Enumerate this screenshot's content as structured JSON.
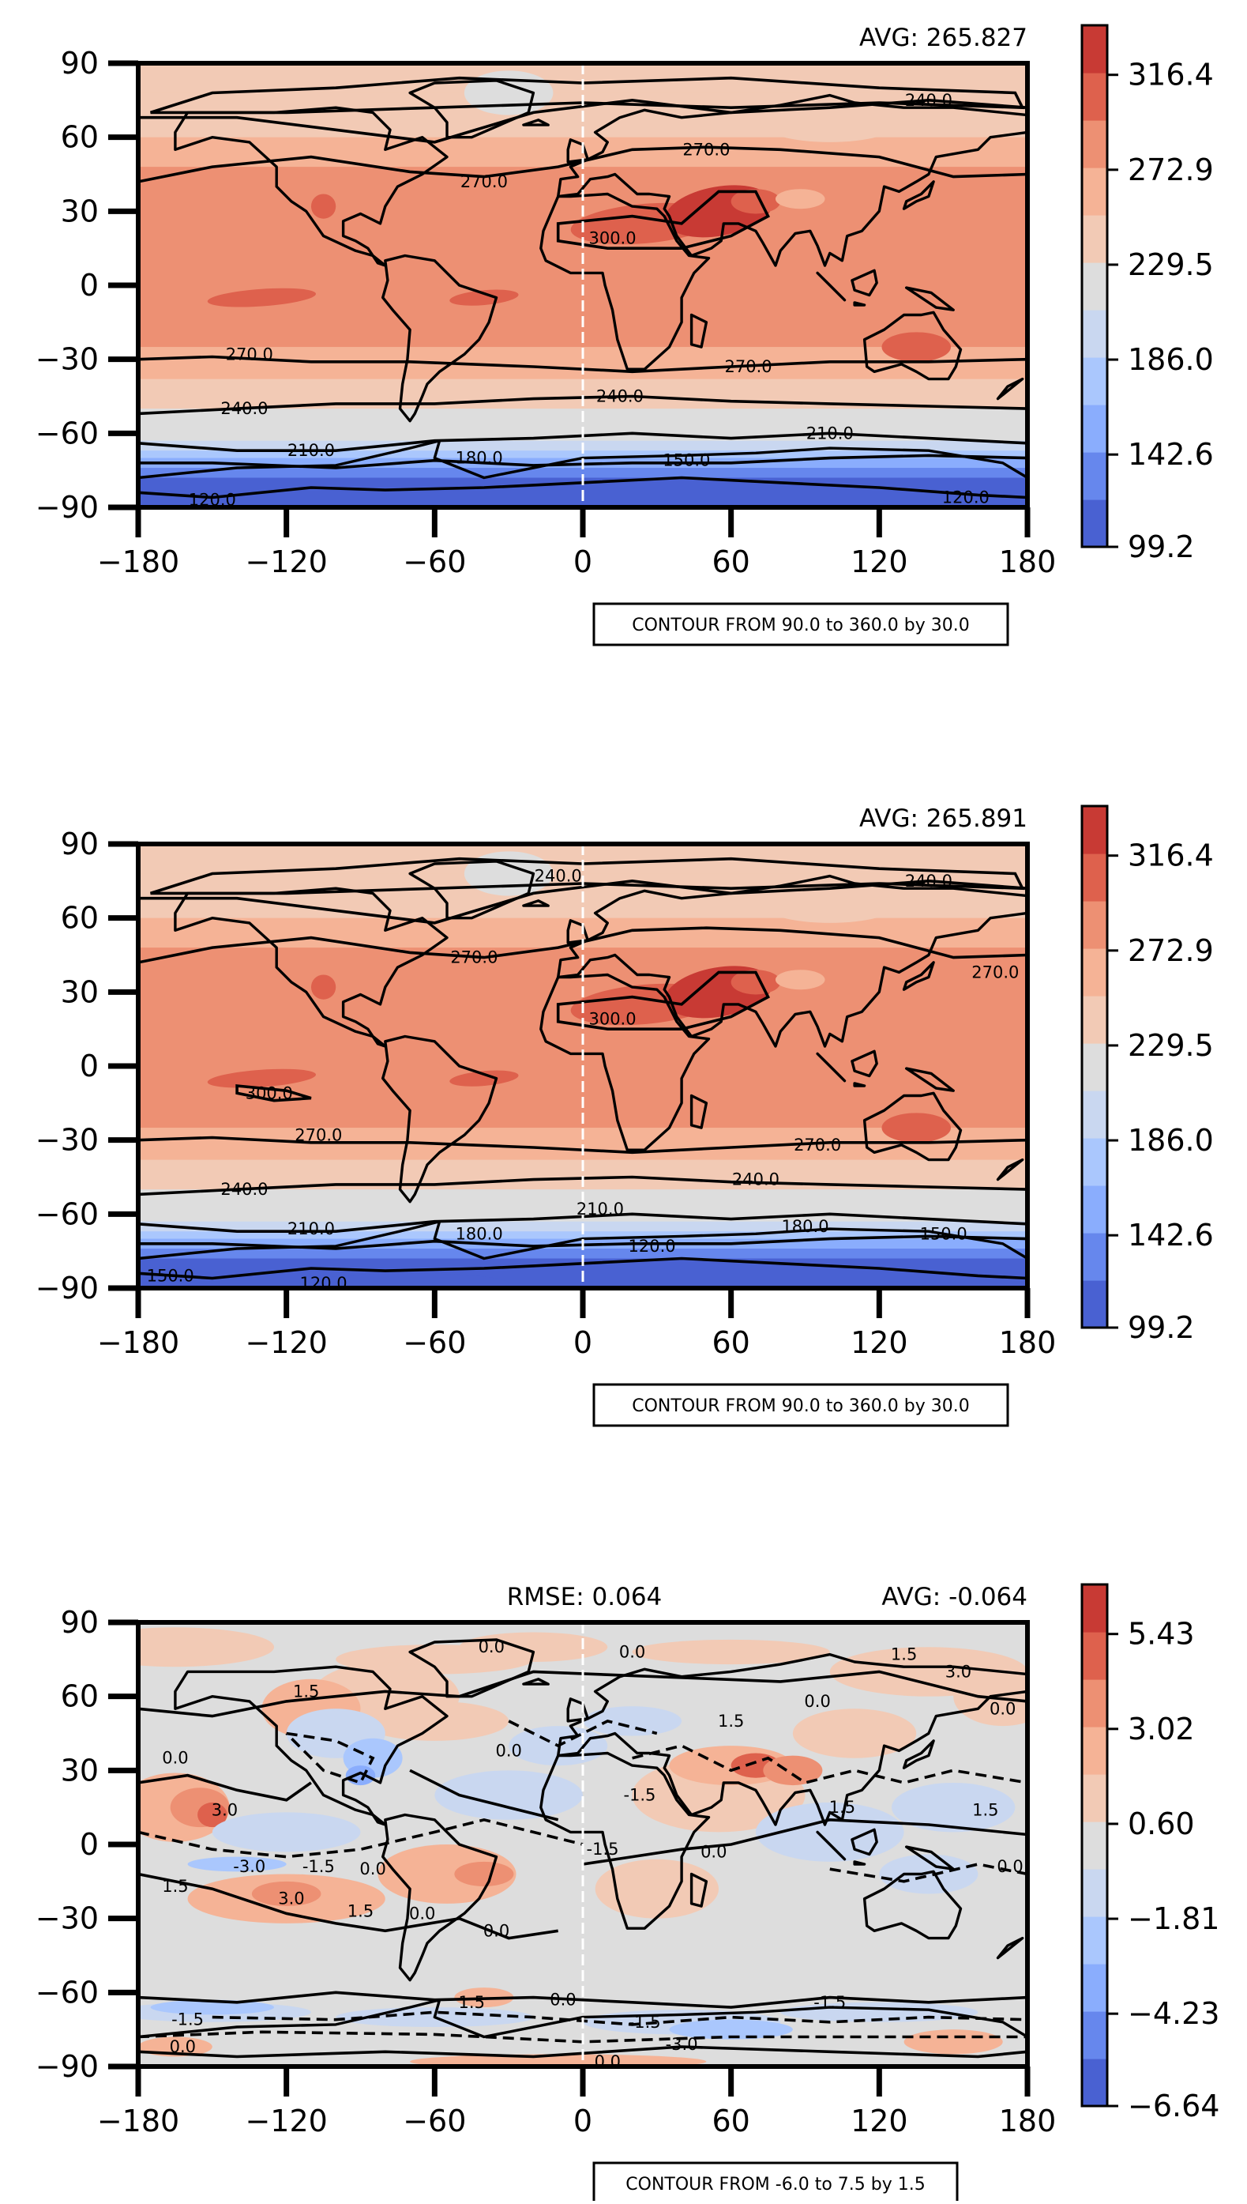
{
  "chart_data": [
    {
      "type": "heatmap",
      "subtype": "global-contour-map",
      "avg_label": "AVG: 265.827",
      "xlim": [
        -180,
        180
      ],
      "ylim": [
        -90,
        90
      ],
      "xticks": [
        "−180",
        "−120",
        "−60",
        "0",
        "60",
        "120",
        "180"
      ],
      "yticks": [
        "90",
        "60",
        "30",
        "0",
        "−30",
        "−60",
        "−90"
      ],
      "colorbar_ticks": [
        "316.4",
        "272.9",
        "229.5",
        "186.0",
        "142.6",
        "99.2"
      ],
      "contour_box": "CONTOUR FROM 90.0 to 360.0 by 30.0",
      "contour_labels": [
        {
          "text": "240.0",
          "lon": 140,
          "lat": 75
        },
        {
          "text": "270.0",
          "lon": 50,
          "lat": 55
        },
        {
          "text": "270.0",
          "lon": -40,
          "lat": 42
        },
        {
          "text": "300.0",
          "lon": 12,
          "lat": 19
        },
        {
          "text": "270.0",
          "lon": -135,
          "lat": -28
        },
        {
          "text": "270.0",
          "lon": 67,
          "lat": -33
        },
        {
          "text": "240.0",
          "lon": -137,
          "lat": -50
        },
        {
          "text": "240.0",
          "lon": 15,
          "lat": -45
        },
        {
          "text": "210.0",
          "lon": -110,
          "lat": -67
        },
        {
          "text": "210.0",
          "lon": 100,
          "lat": -60
        },
        {
          "text": "180.0",
          "lon": -42,
          "lat": -70
        },
        {
          "text": "150.0",
          "lon": 42,
          "lat": -71
        },
        {
          "text": "120.0",
          "lon": -150,
          "lat": -87
        },
        {
          "text": "120.0",
          "lon": 155,
          "lat": -86
        }
      ]
    },
    {
      "type": "heatmap",
      "subtype": "global-contour-map",
      "avg_label": "AVG: 265.891",
      "xlim": [
        -180,
        180
      ],
      "ylim": [
        -90,
        90
      ],
      "xticks": [
        "−180",
        "−120",
        "−60",
        "0",
        "60",
        "120",
        "180"
      ],
      "yticks": [
        "90",
        "60",
        "30",
        "0",
        "−30",
        "−60",
        "−90"
      ],
      "colorbar_ticks": [
        "316.4",
        "272.9",
        "229.5",
        "186.0",
        "142.6",
        "99.2"
      ],
      "contour_box": "CONTOUR FROM 90.0 to 360.0 by 30.0",
      "contour_labels": [
        {
          "text": "240.0",
          "lon": -10,
          "lat": 77
        },
        {
          "text": "240.0",
          "lon": 140,
          "lat": 75
        },
        {
          "text": "270.0",
          "lon": -44,
          "lat": 44
        },
        {
          "text": "270.0",
          "lon": 167,
          "lat": 38
        },
        {
          "text": "300.0",
          "lon": 12,
          "lat": 19
        },
        {
          "text": "300.0",
          "lon": -127,
          "lat": -11
        },
        {
          "text": "270.0",
          "lon": -107,
          "lat": -28
        },
        {
          "text": "270.0",
          "lon": 95,
          "lat": -32
        },
        {
          "text": "240.0",
          "lon": -137,
          "lat": -50
        },
        {
          "text": "240.0",
          "lon": 70,
          "lat": -46
        },
        {
          "text": "210.0",
          "lon": -110,
          "lat": -66
        },
        {
          "text": "210.0",
          "lon": 7,
          "lat": -58
        },
        {
          "text": "180.0",
          "lon": -42,
          "lat": -68
        },
        {
          "text": "180.0",
          "lon": 90,
          "lat": -65
        },
        {
          "text": "150.0",
          "lon": 146,
          "lat": -68
        },
        {
          "text": "120.0",
          "lon": 28,
          "lat": -73
        },
        {
          "text": "150.0",
          "lon": -167,
          "lat": -85
        },
        {
          "text": "120.0",
          "lon": -105,
          "lat": -88
        }
      ]
    },
    {
      "type": "heatmap",
      "subtype": "global-contour-map-difference",
      "rmse_label": "RMSE: 0.064",
      "avg_label": "AVG: -0.064",
      "xlim": [
        -180,
        180
      ],
      "ylim": [
        -90,
        90
      ],
      "xticks": [
        "−180",
        "−120",
        "−60",
        "0",
        "60",
        "120",
        "180"
      ],
      "yticks": [
        "90",
        "60",
        "30",
        "0",
        "−30",
        "−60",
        "−90"
      ],
      "colorbar_ticks": [
        "5.43",
        "3.02",
        "0.60",
        "−1.81",
        "−4.23",
        "−6.64"
      ],
      "contour_box": "CONTOUR FROM -6.0 to 7.5 by 1.5",
      "contour_labels": [
        {
          "text": "0.0",
          "lon": -37,
          "lat": 80
        },
        {
          "text": "0.0",
          "lon": 20,
          "lat": 78
        },
        {
          "text": "1.5",
          "lon": 130,
          "lat": 77
        },
        {
          "text": "3.0",
          "lon": 152,
          "lat": 70
        },
        {
          "text": "1.5",
          "lon": -112,
          "lat": 62
        },
        {
          "text": "0.0",
          "lon": 95,
          "lat": 58
        },
        {
          "text": "1.5",
          "lon": 60,
          "lat": 50
        },
        {
          "text": "0.0",
          "lon": 170,
          "lat": 55
        },
        {
          "text": "0.0",
          "lon": -165,
          "lat": 35
        },
        {
          "text": "0.0",
          "lon": -30,
          "lat": 38
        },
        {
          "text": "3.0",
          "lon": -145,
          "lat": 14
        },
        {
          "text": "-1.5",
          "lon": 23,
          "lat": 20
        },
        {
          "text": "1.5",
          "lon": 105,
          "lat": 15
        },
        {
          "text": "1.5",
          "lon": 163,
          "lat": 14
        },
        {
          "text": "-3.0",
          "lon": -135,
          "lat": -9
        },
        {
          "text": "-1.5",
          "lon": -107,
          "lat": -9
        },
        {
          "text": "0.0",
          "lon": -85,
          "lat": -10
        },
        {
          "text": "-1.5",
          "lon": 8,
          "lat": -2
        },
        {
          "text": "0.0",
          "lon": 53,
          "lat": -3
        },
        {
          "text": "0.0",
          "lon": 173,
          "lat": -9
        },
        {
          "text": "1.5",
          "lon": -165,
          "lat": -17
        },
        {
          "text": "3.0",
          "lon": -118,
          "lat": -22
        },
        {
          "text": "1.5",
          "lon": -90,
          "lat": -27
        },
        {
          "text": "0.0",
          "lon": -65,
          "lat": -28
        },
        {
          "text": "0.0",
          "lon": -35,
          "lat": -35
        },
        {
          "text": "1.5",
          "lon": -45,
          "lat": -64
        },
        {
          "text": "0.0",
          "lon": -8,
          "lat": -63
        },
        {
          "text": "-1.5",
          "lon": 100,
          "lat": -64
        },
        {
          "text": "-1.5",
          "lon": -160,
          "lat": -71
        },
        {
          "text": "-1.5",
          "lon": 25,
          "lat": -72
        },
        {
          "text": "0.0",
          "lon": -162,
          "lat": -82
        },
        {
          "text": "-3.0",
          "lon": 40,
          "lat": -81
        },
        {
          "text": "0.0",
          "lon": 10,
          "lat": -88
        }
      ]
    }
  ],
  "colors": {
    "scale": [
      "#4961d2",
      "#6687ed",
      "#8aadfd",
      "#aac7fd",
      "#c9d7f0",
      "#dddddd",
      "#f2cab5",
      "#f5b396",
      "#ed9073",
      "#de614d",
      "#c83a34"
    ],
    "contour": "#000000",
    "axis": "#000000"
  }
}
